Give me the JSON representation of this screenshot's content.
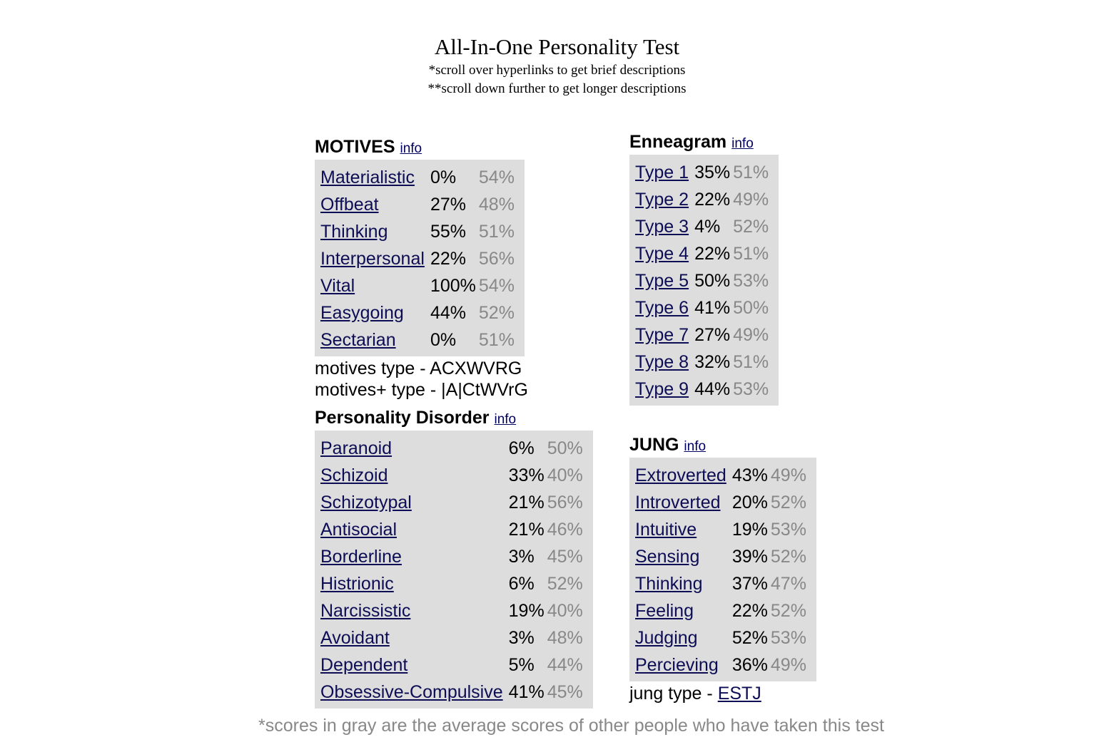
{
  "header": {
    "title": "All-In-One Personality Test",
    "note1": "*scroll over hyperlinks to get brief descriptions",
    "note2": "**scroll down further to get longer descriptions"
  },
  "info_label": "info",
  "motives": {
    "title": "MOTIVES",
    "rows": [
      {
        "name": "Materialistic",
        "score": "0%",
        "avg": "54%"
      },
      {
        "name": "Offbeat",
        "score": "27%",
        "avg": "48%"
      },
      {
        "name": "Thinking",
        "score": "55%",
        "avg": "51%"
      },
      {
        "name": "Interpersonal",
        "score": "22%",
        "avg": "56%"
      },
      {
        "name": "Vital",
        "score": "100%",
        "avg": "54%"
      },
      {
        "name": "Easygoing",
        "score": "44%",
        "avg": "52%"
      },
      {
        "name": "Sectarian",
        "score": "0%",
        "avg": "51%"
      }
    ],
    "type_line": "motives type - ACXWVRG",
    "plus_type_line": "motives+ type - |A|CtWVrG"
  },
  "enneagram": {
    "title": "Enneagram",
    "rows": [
      {
        "name": "Type 1",
        "score": "35%",
        "avg": "51%"
      },
      {
        "name": "Type 2",
        "score": "22%",
        "avg": "49%"
      },
      {
        "name": "Type 3",
        "score": "4%",
        "avg": "52%"
      },
      {
        "name": "Type 4",
        "score": "22%",
        "avg": "51%"
      },
      {
        "name": "Type 5",
        "score": "50%",
        "avg": "53%"
      },
      {
        "name": "Type 6",
        "score": "41%",
        "avg": "50%"
      },
      {
        "name": "Type 7",
        "score": "27%",
        "avg": "49%"
      },
      {
        "name": "Type 8",
        "score": "32%",
        "avg": "51%"
      },
      {
        "name": "Type 9",
        "score": "44%",
        "avg": "53%"
      }
    ]
  },
  "disorder": {
    "title": "Personality Disorder",
    "rows": [
      {
        "name": "Paranoid",
        "score": "6%",
        "avg": "50%"
      },
      {
        "name": "Schizoid",
        "score": "33%",
        "avg": "40%"
      },
      {
        "name": "Schizotypal",
        "score": "21%",
        "avg": "56%"
      },
      {
        "name": "Antisocial",
        "score": "21%",
        "avg": "46%"
      },
      {
        "name": "Borderline",
        "score": "3%",
        "avg": "45%"
      },
      {
        "name": "Histrionic",
        "score": "6%",
        "avg": "52%"
      },
      {
        "name": "Narcissistic",
        "score": "19%",
        "avg": "40%"
      },
      {
        "name": "Avoidant",
        "score": "3%",
        "avg": "48%"
      },
      {
        "name": "Dependent",
        "score": "5%",
        "avg": "44%"
      },
      {
        "name": "Obsessive-Compulsive",
        "score": "41%",
        "avg": "45%"
      }
    ]
  },
  "jung": {
    "title": "JUNG",
    "rows": [
      {
        "name": "Extroverted",
        "score": "43%",
        "avg": "49%"
      },
      {
        "name": "Introverted",
        "score": "20%",
        "avg": "52%"
      },
      {
        "name": "Intuitive",
        "score": "19%",
        "avg": "53%"
      },
      {
        "name": "Sensing",
        "score": "39%",
        "avg": "52%"
      },
      {
        "name": "Thinking",
        "score": "37%",
        "avg": "47%"
      },
      {
        "name": "Feeling",
        "score": "22%",
        "avg": "52%"
      },
      {
        "name": "Judging",
        "score": "52%",
        "avg": "53%"
      },
      {
        "name": "Percieving",
        "score": "36%",
        "avg": "49%"
      }
    ],
    "type_prefix": "jung type - ",
    "type_value": "ESTJ"
  },
  "footer": "*scores in gray are the average scores of other people who have taken this test"
}
